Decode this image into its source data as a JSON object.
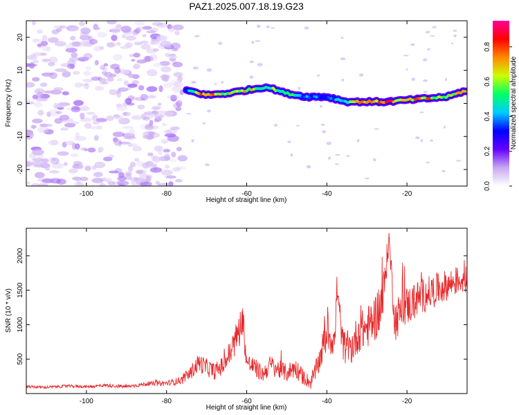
{
  "figure": {
    "title": "PAZ1.2025.007.18.19.G23"
  },
  "chart_data": [
    {
      "type": "heatmap",
      "xlabel": "Height of straight line (km)",
      "ylabel": "Frequency (Hz)",
      "xlim": [
        -115,
        -5
      ],
      "ylim": [
        -25,
        25
      ],
      "xticks": [
        -100,
        -80,
        -60,
        -40,
        -20
      ],
      "yticks": [
        20,
        10,
        0,
        -10,
        -20
      ],
      "grid": false,
      "colorbar": {
        "label": "Normalized spectral amplitude",
        "range": [
          0,
          0.95
        ],
        "ticks": [
          0.0,
          0.2,
          0.4,
          0.6,
          0.8
        ],
        "colormap": [
          "#ffffff",
          "#c8a8f0",
          "#6600ff",
          "#0000ff",
          "#00ccff",
          "#00ff66",
          "#ccff00",
          "#ff8800",
          "#ff0000",
          "#ff0099"
        ]
      },
      "ridge": {
        "x": [
          -75,
          -70,
          -65,
          -60,
          -55,
          -50,
          -45,
          -40,
          -35,
          -30,
          -25,
          -20,
          -15,
          -10,
          -5
        ],
        "freq": [
          4,
          2.5,
          3,
          4,
          5,
          3,
          2,
          2,
          0.5,
          0.5,
          0.5,
          1,
          1.5,
          2,
          4
        ],
        "amplitude": [
          0.35,
          0.85,
          0.6,
          0.7,
          0.55,
          0.6,
          0.4,
          0.35,
          0.45,
          0.8,
          0.85,
          0.7,
          0.75,
          0.6,
          0.7
        ]
      },
      "noise_region": {
        "x_from": -115,
        "x_to": -76,
        "amplitude": 0.2
      }
    },
    {
      "type": "line",
      "xlabel": "Height of straight line (km)",
      "ylabel": "SNR (10 * v/v)",
      "xlim": [
        -115,
        -5
      ],
      "ylim": [
        0,
        2400
      ],
      "xticks": [
        -100,
        -80,
        -60,
        -40,
        -20
      ],
      "yticks": [
        500,
        1000,
        1500,
        2000
      ],
      "grid": false,
      "series": [
        {
          "color": "#e8282a",
          "x": [
            -115,
            -110,
            -105,
            -100,
            -95,
            -90,
            -85,
            -80,
            -78,
            -76,
            -74,
            -72,
            -70,
            -68,
            -66,
            -64,
            -62,
            -61,
            -60,
            -58,
            -56,
            -54,
            -52,
            -50,
            -48,
            -46,
            -44,
            -42,
            -40,
            -38,
            -37.5,
            -36,
            -34,
            -32,
            -30,
            -28,
            -26,
            -24.5,
            -23,
            -21,
            -19,
            -17,
            -15,
            -13,
            -11,
            -9,
            -7,
            -5
          ],
          "y": [
            100,
            90,
            110,
            100,
            120,
            100,
            140,
            150,
            170,
            200,
            300,
            450,
            380,
            320,
            400,
            600,
            900,
            1100,
            450,
            380,
            280,
            420,
            350,
            300,
            380,
            250,
            150,
            450,
            900,
            750,
            1550,
            700,
            650,
            900,
            950,
            1100,
            1350,
            2250,
            1050,
            1250,
            1300,
            1400,
            1450,
            1500,
            1550,
            1600,
            1650,
            1650
          ],
          "noise_amplitude": [
            20,
            20,
            20,
            20,
            25,
            25,
            30,
            40,
            50,
            60,
            100,
            140,
            130,
            120,
            140,
            200,
            250,
            250,
            150,
            140,
            120,
            150,
            140,
            130,
            150,
            120,
            90,
            180,
            300,
            250,
            200,
            250,
            250,
            300,
            300,
            350,
            380,
            150,
            300,
            300,
            280,
            260,
            250,
            240,
            230,
            220,
            200,
            200
          ]
        }
      ]
    }
  ]
}
